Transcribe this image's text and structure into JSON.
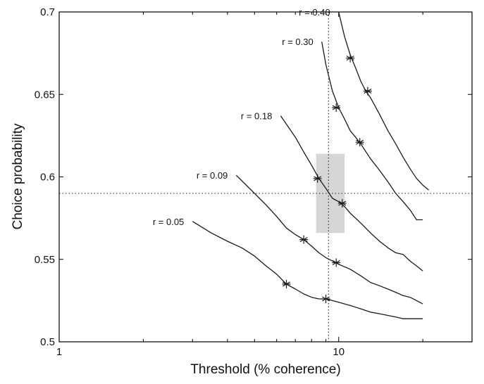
{
  "chart_data": {
    "type": "line",
    "xlabel": "Threshold (% coherence)",
    "ylabel": "Choice probability",
    "xscale": "log",
    "xlim": [
      1,
      30
    ],
    "ylim": [
      0.5,
      0.7
    ],
    "grid": false,
    "x_ticks": [
      {
        "value": 1,
        "label": "1"
      },
      {
        "value": 10,
        "label": "10"
      }
    ],
    "y_ticks": [
      {
        "value": 0.5,
        "label": "0.5"
      },
      {
        "value": 0.55,
        "label": "0.55"
      },
      {
        "value": 0.6,
        "label": "0.6"
      },
      {
        "value": 0.65,
        "label": "0.65"
      },
      {
        "value": 0.7,
        "label": "0.7"
      }
    ],
    "reference_lines": {
      "x": 9.2,
      "y": 0.59
    },
    "shaded_region": {
      "x": [
        8.3,
        10.5
      ],
      "y": [
        0.566,
        0.614
      ]
    },
    "series": [
      {
        "name": "r = 0.05",
        "x": [
          3.0,
          3.5,
          4.0,
          4.5,
          5.0,
          5.5,
          6.0,
          6.5,
          7.0,
          7.5,
          8.0,
          8.5,
          9.0,
          9.5,
          10,
          11,
          12,
          13,
          14,
          15,
          16,
          17,
          18,
          19,
          20
        ],
        "y": [
          0.573,
          0.566,
          0.561,
          0.557,
          0.552,
          0.546,
          0.541,
          0.535,
          0.532,
          0.529,
          0.527,
          0.526,
          0.526,
          0.525,
          0.524,
          0.522,
          0.52,
          0.518,
          0.517,
          0.516,
          0.515,
          0.514,
          0.514,
          0.514,
          0.514
        ],
        "markers": [
          [
            6.5,
            0.535
          ],
          [
            9.0,
            0.526
          ]
        ]
      },
      {
        "name": "r = 0.09",
        "x": [
          4.3,
          5.0,
          5.5,
          6.0,
          6.5,
          7.0,
          7.5,
          8.0,
          8.5,
          9.0,
          9.5,
          10,
          11,
          12,
          13,
          14,
          15,
          16,
          17,
          18,
          19,
          20
        ],
        "y": [
          0.601,
          0.59,
          0.583,
          0.576,
          0.569,
          0.565,
          0.562,
          0.558,
          0.554,
          0.551,
          0.549,
          0.547,
          0.544,
          0.54,
          0.536,
          0.534,
          0.532,
          0.53,
          0.528,
          0.527,
          0.525,
          0.523
        ],
        "markers": [
          [
            7.5,
            0.562
          ],
          [
            9.8,
            0.548
          ]
        ]
      },
      {
        "name": "r = 0.18",
        "x": [
          6.2,
          6.5,
          7.0,
          7.5,
          8.0,
          8.5,
          9.0,
          9.5,
          10,
          10.5,
          11,
          12,
          13,
          14,
          15,
          16,
          17,
          18,
          19,
          20
        ],
        "y": [
          0.637,
          0.632,
          0.624,
          0.615,
          0.607,
          0.599,
          0.593,
          0.587,
          0.585,
          0.582,
          0.578,
          0.572,
          0.566,
          0.561,
          0.557,
          0.554,
          0.553,
          0.549,
          0.546,
          0.543
        ],
        "markers": [
          [
            8.4,
            0.599
          ],
          [
            10.3,
            0.584
          ]
        ]
      },
      {
        "name": "r = 0.30",
        "x": [
          8.7,
          9.0,
          9.5,
          10,
          10.5,
          11,
          11.5,
          12,
          13,
          14,
          15,
          16,
          17,
          18,
          19,
          20
        ],
        "y": [
          0.682,
          0.668,
          0.652,
          0.642,
          0.635,
          0.628,
          0.624,
          0.62,
          0.611,
          0.604,
          0.597,
          0.59,
          0.585,
          0.58,
          0.574,
          0.574
        ],
        "markers": [
          [
            9.8,
            0.642
          ],
          [
            11.9,
            0.621
          ]
        ]
      },
      {
        "name": "r = 0.40",
        "x": [
          10.0,
          10.5,
          11,
          11.5,
          12,
          12.5,
          13,
          14,
          15,
          16,
          17,
          18,
          19,
          20,
          21
        ],
        "y": [
          0.7,
          0.685,
          0.674,
          0.666,
          0.658,
          0.652,
          0.648,
          0.638,
          0.628,
          0.62,
          0.612,
          0.605,
          0.599,
          0.595,
          0.592
        ],
        "markers": [
          [
            11.0,
            0.672
          ],
          [
            12.7,
            0.652
          ]
        ]
      }
    ]
  }
}
